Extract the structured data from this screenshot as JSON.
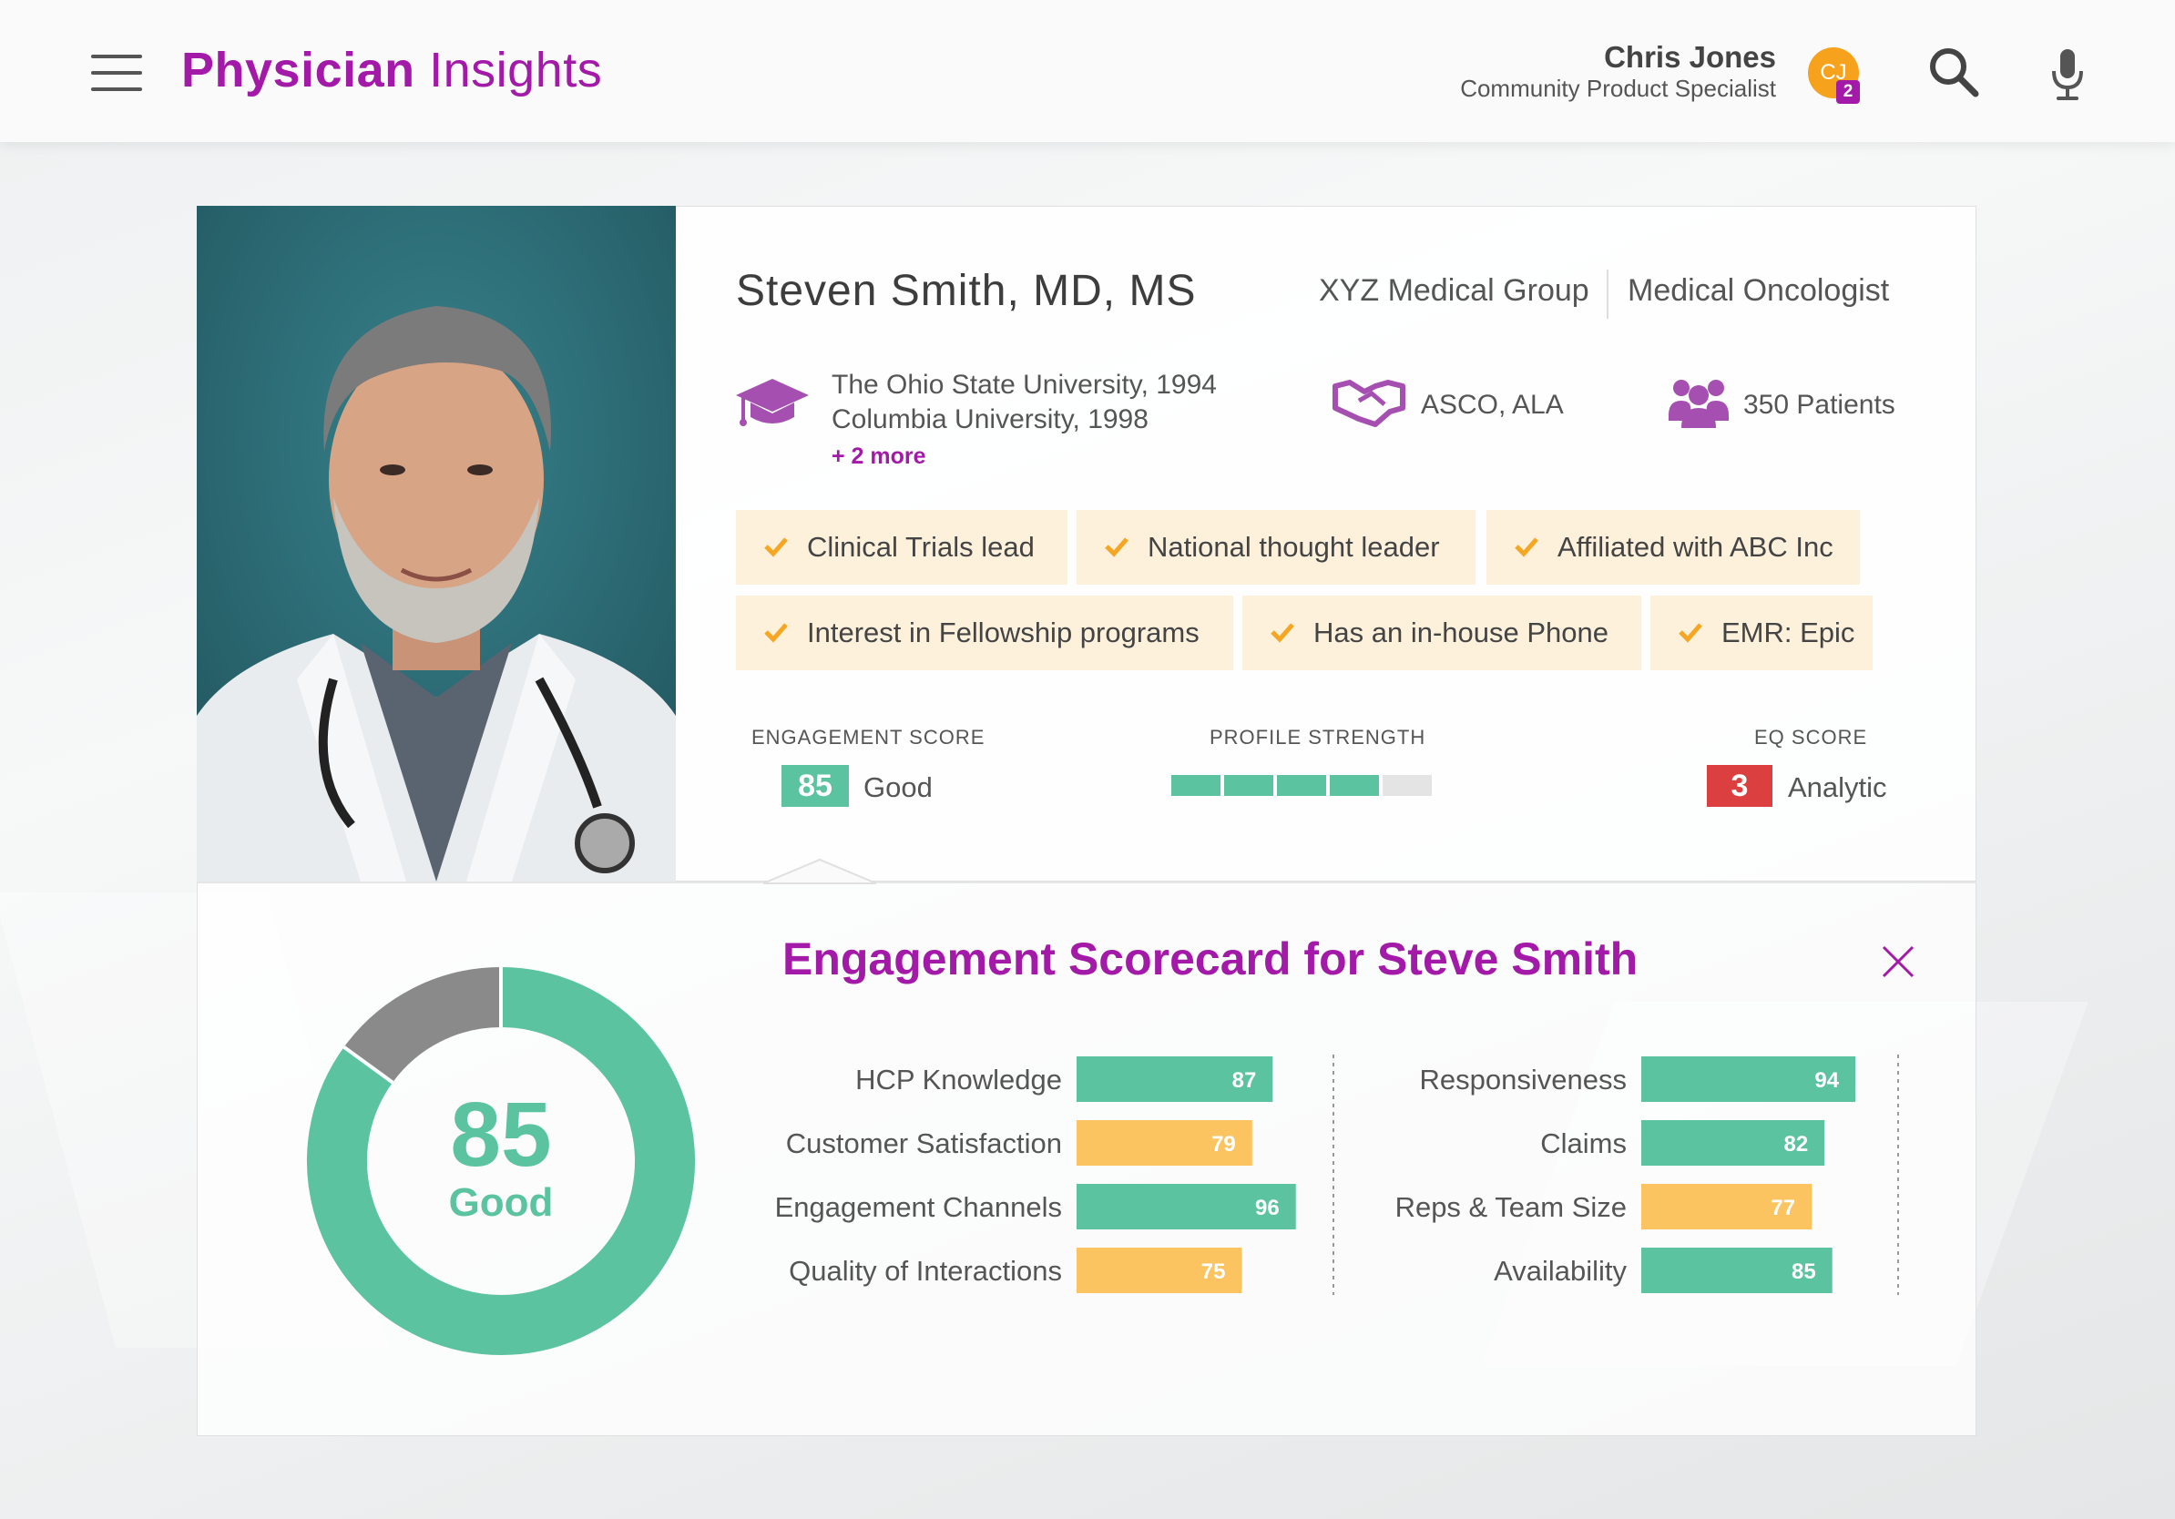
{
  "header": {
    "app_title_bold": "Physician",
    "app_title_light": "Insights",
    "user_name": "Chris Jones",
    "user_role": "Community Product Specialist",
    "avatar_initials": "CJ",
    "notification_count": "2",
    "icons": [
      "menu-icon",
      "search-icon",
      "microphone-icon"
    ]
  },
  "profile": {
    "name": "Steven Smith, MD, MS",
    "organization": "XYZ Medical Group",
    "specialty": "Medical Oncologist",
    "education": [
      "The Ohio State University, 1994",
      "Columbia University, 1998"
    ],
    "education_more": "+ 2 more",
    "associations": "ASCO, ALA",
    "patients": "350 Patients",
    "tags": [
      "Clinical Trials lead",
      "National thought leader",
      "Affiliated with ABC Inc",
      "Interest in Fellowship programs",
      "Has an in-house Phone",
      "EMR: Epic"
    ],
    "metrics": {
      "engagement_label": "ENGAGEMENT SCORE",
      "engagement_score": "85",
      "engagement_rating": "Good",
      "profile_strength_label": "PROFILE STRENGTH",
      "profile_strength_filled": 4,
      "profile_strength_total": 5,
      "eq_label": "EQ SCORE",
      "eq_score": "3",
      "eq_rating": "Analytic"
    }
  },
  "scorecard": {
    "title": "Engagement Scorecard for Steve Smith",
    "overall_score": "85",
    "overall_rating": "Good"
  },
  "chart_data": [
    {
      "type": "pie",
      "values": [
        85,
        15
      ],
      "colors": [
        "#5bc39f",
        "#8a8a8a"
      ],
      "center_label": "85",
      "center_sublabel": "Good"
    },
    {
      "type": "bar",
      "orientation": "horizontal",
      "categories": [
        "HCP Knowledge",
        "Customer Satisfaction",
        "Engagement Channels",
        "Quality of Interactions"
      ],
      "values": [
        87,
        79,
        96,
        75
      ],
      "colors": [
        "#5bc39f",
        "#fcc460",
        "#5bc39f",
        "#fcc460"
      ],
      "xlim": [
        0,
        100
      ]
    },
    {
      "type": "bar",
      "orientation": "horizontal",
      "categories": [
        "Responsiveness",
        "Claims",
        "Reps & Team Size",
        "Availability"
      ],
      "values": [
        94,
        82,
        77,
        85
      ],
      "colors": [
        "#5bc39f",
        "#5bc39f",
        "#fcc460",
        "#5bc39f"
      ],
      "xlim": [
        0,
        100
      ]
    }
  ],
  "colors": {
    "brand": "#a319a8",
    "good": "#5bc39f",
    "warning": "#fcc460",
    "alert": "#dc3f3f",
    "tag_background": "#fdf1dc",
    "avatar": "#f6a21c"
  }
}
